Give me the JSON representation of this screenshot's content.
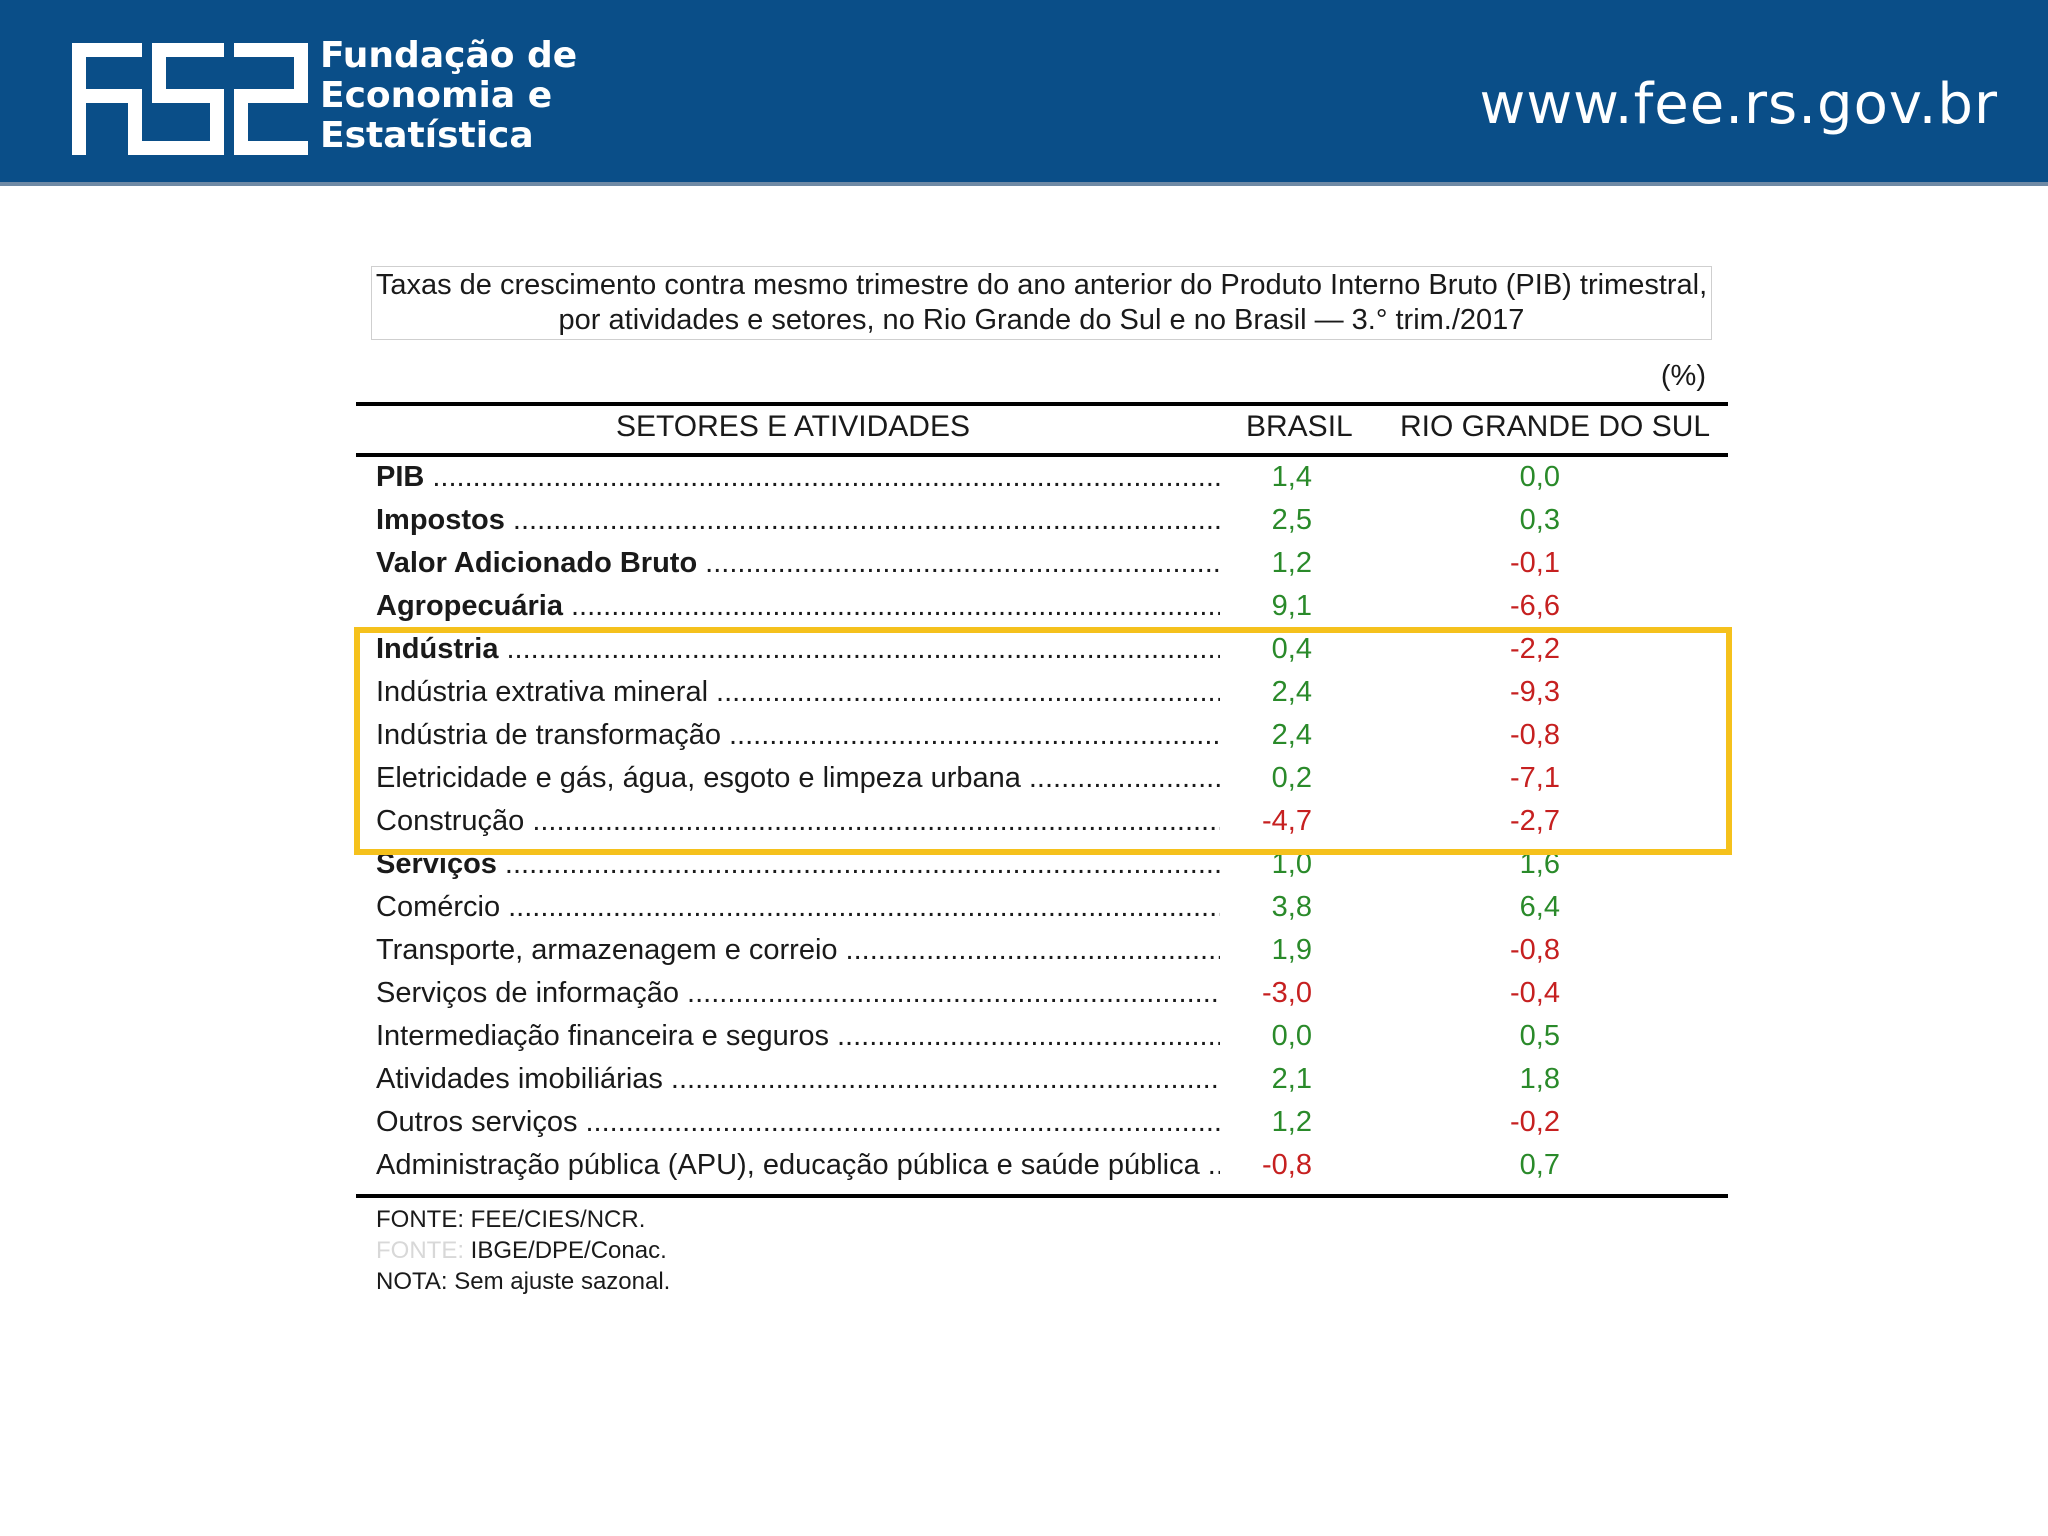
{
  "header": {
    "logo_lines": [
      "Fundação de",
      "Economia e",
      "Estatística"
    ],
    "url": "www.fee.rs.gov.br",
    "colors": {
      "band": "#0a4e88",
      "text": "#ffffff"
    }
  },
  "table": {
    "title_line1": "Taxas de crescimento contra mesmo trimestre do ano anterior do Produto Interno Bruto (PIB) trimestral,",
    "title_line2": "por atividades e setores, no Rio Grande do Sul e no Brasil — 3.° trim./2017",
    "unit": "(%)",
    "col_sector": "SETORES E ATIVIDADES",
    "col_brasil": "BRASIL",
    "col_rs": "RIO GRANDE DO SUL",
    "rows": [
      {
        "label": "PIB",
        "bold": true,
        "brasil": "1,4",
        "rs": "0,0"
      },
      {
        "label": "Impostos",
        "bold": true,
        "brasil": "2,5",
        "rs": "0,3"
      },
      {
        "label": "Valor Adicionado Bruto",
        "bold": true,
        "brasil": "1,2",
        "rs": "-0,1"
      },
      {
        "label": "Agropecuária",
        "bold": true,
        "brasil": "9,1",
        "rs": "-6,6"
      },
      {
        "label": "Indústria",
        "bold": true,
        "brasil": "0,4",
        "rs": "-2,2"
      },
      {
        "label": "Indústria extrativa mineral",
        "bold": false,
        "brasil": "2,4",
        "rs": "-9,3"
      },
      {
        "label": "Indústria de transformação",
        "bold": false,
        "brasil": "2,4",
        "rs": "-0,8"
      },
      {
        "label": "Eletricidade e gás, água, esgoto e limpeza urbana",
        "bold": false,
        "brasil": "0,2",
        "rs": "-7,1"
      },
      {
        "label": "Construção",
        "bold": false,
        "brasil": "-4,7",
        "rs": "-2,7"
      },
      {
        "label": "Serviços",
        "bold": true,
        "brasil": "1,0",
        "rs": "1,6"
      },
      {
        "label": "Comércio",
        "bold": false,
        "brasil": "3,8",
        "rs": "6,4"
      },
      {
        "label": "Transporte, armazenagem e correio",
        "bold": false,
        "brasil": "1,9",
        "rs": "-0,8"
      },
      {
        "label": "Serviços de informação",
        "bold": false,
        "brasil": "-3,0",
        "rs": "-0,4"
      },
      {
        "label": "Intermediação financeira e seguros",
        "bold": false,
        "brasil": "0,0",
        "rs": "0,5"
      },
      {
        "label": "Atividades imobiliárias",
        "bold": false,
        "brasil": "2,1",
        "rs": "1,8"
      },
      {
        "label": "Outros serviços",
        "bold": false,
        "brasil": "1,2",
        "rs": "-0,2"
      },
      {
        "label": "Administração pública (APU), educação pública e saúde pública",
        "bold": false,
        "brasil": "-0,8",
        "rs": "0,7"
      }
    ],
    "highlight_color": "#f5c11c",
    "positive_color": "#2a8a2a",
    "negative_color": "#c62020"
  },
  "notes": {
    "source1": "FONTE: FEE/CIES/NCR.",
    "source2_prefix": "FONTE:",
    "source2": "IBGE/DPE/Conac.",
    "note": "NOTA: Sem ajuste sazonal."
  },
  "chart_data": {
    "type": "table",
    "title": "Taxas de crescimento contra mesmo trimestre do ano anterior do Produto Interno Bruto (PIB) trimestral, por atividades e setores, no Rio Grande do Sul e no Brasil — 3.° trim./2017",
    "categories": [
      "PIB",
      "Impostos",
      "Valor Adicionado Bruto",
      "Agropecuária",
      "Indústria",
      "Indústria extrativa mineral",
      "Indústria de transformação",
      "Eletricidade e gás, água, esgoto e limpeza urbana",
      "Construção",
      "Serviços",
      "Comércio",
      "Transporte, armazenagem e correio",
      "Serviços de informação",
      "Intermediação financeira e seguros",
      "Atividades imobiliárias",
      "Outros serviços",
      "Administração pública (APU), educação pública e saúde pública"
    ],
    "series": [
      {
        "name": "BRASIL",
        "values": [
          1.4,
          2.5,
          1.2,
          9.1,
          0.4,
          2.4,
          2.4,
          0.2,
          -4.7,
          1.0,
          3.8,
          1.9,
          -3.0,
          0.0,
          2.1,
          1.2,
          -0.8
        ]
      },
      {
        "name": "RIO GRANDE DO SUL",
        "values": [
          0.0,
          0.3,
          -0.1,
          -6.6,
          -2.2,
          -9.3,
          -0.8,
          -7.1,
          -2.7,
          1.6,
          6.4,
          -0.8,
          -0.4,
          0.5,
          1.8,
          -0.2,
          0.7
        ]
      }
    ]
  }
}
